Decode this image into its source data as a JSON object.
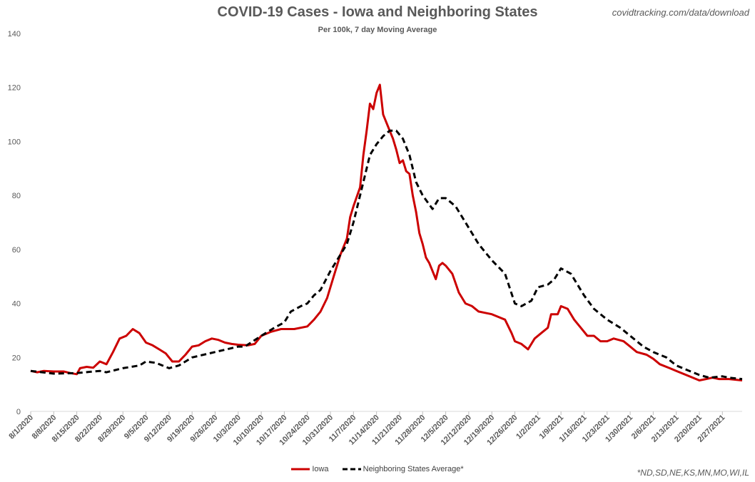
{
  "source": "covidtracking.com/data/download",
  "footnote": "*ND,SD,NE,KS,MN,MO,WI,IL",
  "chart_data": {
    "type": "line",
    "title": "COVID-19 Cases - Iowa and Neighboring States",
    "subtitle": "Per 100k, 7 day Moving Average",
    "xlabel": "",
    "ylabel": "",
    "ylim": [
      0,
      140
    ],
    "yticks": [
      0,
      20,
      40,
      60,
      80,
      100,
      120,
      140
    ],
    "grid": false,
    "legend_position": "bottom",
    "start_date": "2020-08-01",
    "end_date": "2021-03-05",
    "xtick_labels": [
      "8/1/2020",
      "8/8/2020",
      "8/15/2020",
      "8/22/2020",
      "8/29/2020",
      "9/5/2020",
      "9/12/2020",
      "9/19/2020",
      "9/26/2020",
      "10/3/2020",
      "10/10/2020",
      "10/17/2020",
      "10/24/2020",
      "10/31/2020",
      "11/7/2020",
      "11/14/2020",
      "11/21/2020",
      "11/28/2020",
      "12/5/2020",
      "12/12/2020",
      "12/19/2020",
      "12/26/2020",
      "1/2/2021",
      "1/9/2021",
      "1/16/2021",
      "1/23/2021",
      "1/30/2021",
      "2/6/2021",
      "2/13/2021",
      "2/20/2021",
      "2/27/2021"
    ],
    "series": [
      {
        "name": "Iowa",
        "color": "#cc0000",
        "style": "solid",
        "points": [
          [
            "8/1/2020",
            15
          ],
          [
            "8/3/2020",
            14.5
          ],
          [
            "8/5/2020",
            15
          ],
          [
            "8/8/2020",
            14.8
          ],
          [
            "8/11/2020",
            14.8
          ],
          [
            "8/13/2020",
            14.2
          ],
          [
            "8/15/2020",
            13.8
          ],
          [
            "8/16/2020",
            16
          ],
          [
            "8/18/2020",
            16.5
          ],
          [
            "8/20/2020",
            16.2
          ],
          [
            "8/22/2020",
            18.5
          ],
          [
            "8/24/2020",
            17.5
          ],
          [
            "8/26/2020",
            22
          ],
          [
            "8/28/2020",
            27
          ],
          [
            "8/30/2020",
            28
          ],
          [
            "9/1/2020",
            30.5
          ],
          [
            "9/3/2020",
            29
          ],
          [
            "9/5/2020",
            25.5
          ],
          [
            "9/7/2020",
            24.5
          ],
          [
            "9/9/2020",
            23
          ],
          [
            "9/11/2020",
            21.5
          ],
          [
            "9/13/2020",
            18.5
          ],
          [
            "9/15/2020",
            18.5
          ],
          [
            "9/17/2020",
            21
          ],
          [
            "9/19/2020",
            24
          ],
          [
            "9/21/2020",
            24.5
          ],
          [
            "9/23/2020",
            26
          ],
          [
            "9/25/2020",
            27
          ],
          [
            "9/27/2020",
            26.5
          ],
          [
            "9/29/2020",
            25.5
          ],
          [
            "10/1/2020",
            25
          ],
          [
            "10/3/2020",
            24.7
          ],
          [
            "10/6/2020",
            24.5
          ],
          [
            "10/8/2020",
            25
          ],
          [
            "10/10/2020",
            28
          ],
          [
            "10/13/2020",
            29.5
          ],
          [
            "10/16/2020",
            30.5
          ],
          [
            "10/18/2020",
            30.5
          ],
          [
            "10/20/2020",
            30.5
          ],
          [
            "10/24/2020",
            31.5
          ],
          [
            "10/26/2020",
            34
          ],
          [
            "10/28/2020",
            37
          ],
          [
            "10/30/2020",
            42
          ],
          [
            "11/1/2020",
            50
          ],
          [
            "11/3/2020",
            58
          ],
          [
            "11/5/2020",
            64
          ],
          [
            "11/6/2020",
            72
          ],
          [
            "11/7/2020",
            76
          ],
          [
            "11/9/2020",
            83
          ],
          [
            "11/10/2020",
            95
          ],
          [
            "11/11/2020",
            104
          ],
          [
            "11/12/2020",
            114
          ],
          [
            "11/13/2020",
            112
          ],
          [
            "11/14/2020",
            118
          ],
          [
            "11/15/2020",
            121
          ],
          [
            "11/16/2020",
            110
          ],
          [
            "11/17/2020",
            107
          ],
          [
            "11/18/2020",
            104
          ],
          [
            "11/19/2020",
            101
          ],
          [
            "11/20/2020",
            97
          ],
          [
            "11/21/2020",
            92
          ],
          [
            "11/22/2020",
            93
          ],
          [
            "11/23/2020",
            89
          ],
          [
            "11/24/2020",
            88
          ],
          [
            "11/25/2020",
            80
          ],
          [
            "11/26/2020",
            74
          ],
          [
            "11/27/2020",
            66
          ],
          [
            "11/28/2020",
            62
          ],
          [
            "11/29/2020",
            57
          ],
          [
            "11/30/2020",
            55
          ],
          [
            "12/1/2020",
            52
          ],
          [
            "12/2/2020",
            49
          ],
          [
            "12/3/2020",
            54
          ],
          [
            "12/4/2020",
            55
          ],
          [
            "12/5/2020",
            54
          ],
          [
            "12/7/2020",
            51
          ],
          [
            "12/9/2020",
            44
          ],
          [
            "12/11/2020",
            40
          ],
          [
            "12/13/2020",
            39
          ],
          [
            "12/15/2020",
            37
          ],
          [
            "12/17/2020",
            36.5
          ],
          [
            "12/19/2020",
            36
          ],
          [
            "12/21/2020",
            35
          ],
          [
            "12/23/2020",
            34
          ],
          [
            "12/25/2020",
            29
          ],
          [
            "12/26/2020",
            26
          ],
          [
            "12/28/2020",
            25
          ],
          [
            "12/30/2020",
            23
          ],
          [
            "1/1/2021",
            27
          ],
          [
            "1/3/2021",
            29
          ],
          [
            "1/5/2021",
            31
          ],
          [
            "1/6/2021",
            36
          ],
          [
            "1/8/2021",
            36
          ],
          [
            "1/9/2021",
            39
          ],
          [
            "1/11/2021",
            38
          ],
          [
            "1/13/2021",
            34
          ],
          [
            "1/15/2021",
            31
          ],
          [
            "1/17/2021",
            28
          ],
          [
            "1/19/2021",
            28
          ],
          [
            "1/21/2021",
            26
          ],
          [
            "1/23/2021",
            26
          ],
          [
            "1/25/2021",
            27
          ],
          [
            "1/28/2021",
            26
          ],
          [
            "1/30/2021",
            24
          ],
          [
            "2/1/2021",
            22
          ],
          [
            "2/4/2021",
            21
          ],
          [
            "2/6/2021",
            19.5
          ],
          [
            "2/8/2021",
            17.5
          ],
          [
            "2/11/2021",
            16
          ],
          [
            "2/13/2021",
            15
          ],
          [
            "2/15/2021",
            14
          ],
          [
            "2/17/2021",
            13
          ],
          [
            "2/20/2021",
            11.5
          ],
          [
            "2/22/2021",
            12
          ],
          [
            "2/24/2021",
            12.5
          ],
          [
            "2/26/2021",
            12
          ],
          [
            "3/1/2021",
            12
          ],
          [
            "3/5/2021",
            11.5
          ]
        ]
      },
      {
        "name": "Neighboring States Average*",
        "color": "#000000",
        "style": "dashed",
        "points": [
          [
            "8/1/2020",
            15
          ],
          [
            "8/8/2020",
            14
          ],
          [
            "8/15/2020",
            14.2
          ],
          [
            "8/22/2020",
            15
          ],
          [
            "8/24/2020",
            14.5
          ],
          [
            "8/29/2020",
            16
          ],
          [
            "9/3/2020",
            17
          ],
          [
            "9/5/2020",
            18.5
          ],
          [
            "9/8/2020",
            18
          ],
          [
            "9/12/2020",
            16
          ],
          [
            "9/15/2020",
            17
          ],
          [
            "9/19/2020",
            20
          ],
          [
            "9/26/2020",
            22
          ],
          [
            "10/3/2020",
            24
          ],
          [
            "10/5/2020",
            24
          ],
          [
            "10/10/2020",
            28
          ],
          [
            "10/14/2020",
            31
          ],
          [
            "10/17/2020",
            33
          ],
          [
            "10/19/2020",
            37
          ],
          [
            "10/22/2020",
            39
          ],
          [
            "10/24/2020",
            40
          ],
          [
            "10/26/2020",
            43
          ],
          [
            "10/28/2020",
            45
          ],
          [
            "10/31/2020",
            52
          ],
          [
            "11/3/2020",
            58
          ],
          [
            "11/5/2020",
            62
          ],
          [
            "11/7/2020",
            70
          ],
          [
            "11/10/2020",
            85
          ],
          [
            "11/12/2020",
            95
          ],
          [
            "11/14/2020",
            99
          ],
          [
            "11/16/2020",
            102
          ],
          [
            "11/18/2020",
            104
          ],
          [
            "11/20/2020",
            104
          ],
          [
            "11/22/2020",
            101
          ],
          [
            "11/24/2020",
            95
          ],
          [
            "11/26/2020",
            85
          ],
          [
            "11/28/2020",
            80
          ],
          [
            "12/1/2020",
            75
          ],
          [
            "12/3/2020",
            79
          ],
          [
            "12/5/2020",
            79
          ],
          [
            "12/8/2020",
            76
          ],
          [
            "12/11/2020",
            70
          ],
          [
            "12/15/2020",
            62
          ],
          [
            "12/19/2020",
            56
          ],
          [
            "12/23/2020",
            51
          ],
          [
            "12/26/2020",
            40
          ],
          [
            "12/28/2020",
            39
          ],
          [
            "12/31/2020",
            41
          ],
          [
            "1/2/2021",
            46
          ],
          [
            "1/5/2021",
            47
          ],
          [
            "1/7/2021",
            49
          ],
          [
            "1/9/2021",
            53
          ],
          [
            "1/12/2021",
            51
          ],
          [
            "1/16/2021",
            43
          ],
          [
            "1/19/2021",
            38
          ],
          [
            "1/23/2021",
            34
          ],
          [
            "1/27/2021",
            31
          ],
          [
            "1/30/2021",
            28
          ],
          [
            "2/3/2021",
            24
          ],
          [
            "2/6/2021",
            22
          ],
          [
            "2/10/2021",
            20
          ],
          [
            "2/13/2021",
            17
          ],
          [
            "2/17/2021",
            15
          ],
          [
            "2/20/2021",
            13.5
          ],
          [
            "2/23/2021",
            12.5
          ],
          [
            "2/27/2021",
            13
          ],
          [
            "3/1/2021",
            12.5
          ],
          [
            "3/5/2021",
            12
          ]
        ]
      }
    ]
  }
}
